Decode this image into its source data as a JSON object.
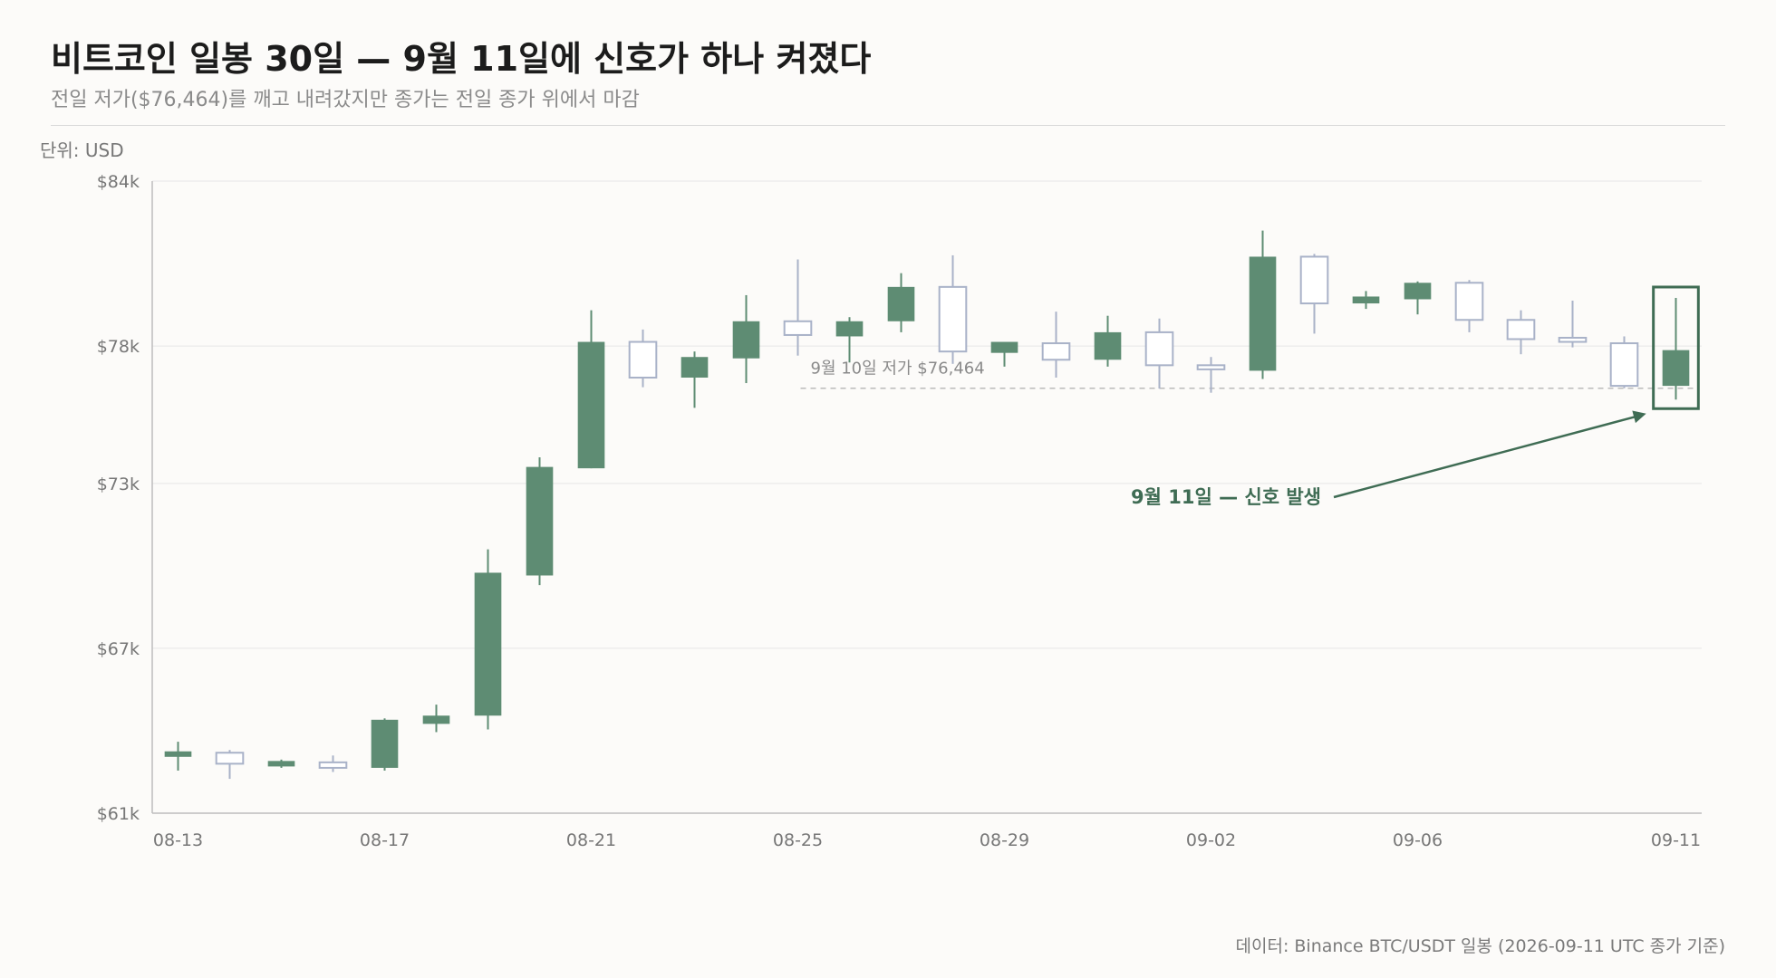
{
  "title": "비트코인 일봉 30일 — 9월 11일에 신호가 하나 켜졌다",
  "subtitle": "전일 저가($76,464)를 깨고 내려갔지만 종가는 전일 종가 위에서 마감",
  "unit_label": "단위: USD",
  "footer": "데이터: Binance BTC/USDT 일봉 (2026-09-11 UTC 종가 기준)",
  "colors": {
    "up": "#5e8c73",
    "down_stroke": "#a9b2c8",
    "highlight": "#3f6c54",
    "grid": "#e6e6e6",
    "ref_line": "#bbbbbb"
  },
  "chart_data": {
    "type": "candlestick",
    "ylim": [
      61000,
      84000
    ],
    "yticks": [
      61000,
      67000,
      73000,
      78000,
      84000
    ],
    "ytick_labels": [
      "$61k",
      "$67k",
      "$73k",
      "$78k",
      "$84k"
    ],
    "xtick_labels": [
      "08-13",
      "08-17",
      "08-21",
      "08-25",
      "08-29",
      "09-02",
      "09-06",
      "09-11"
    ],
    "xtick_indices": [
      0,
      4,
      8,
      12,
      16,
      20,
      24,
      29
    ],
    "candles": [
      {
        "date": "08-13",
        "open": 63050,
        "high": 63600,
        "low": 62550,
        "close": 63250
      },
      {
        "date": "08-14",
        "open": 63200,
        "high": 63300,
        "low": 62250,
        "close": 62800
      },
      {
        "date": "08-15",
        "open": 62700,
        "high": 62950,
        "low": 62650,
        "close": 62900
      },
      {
        "date": "08-16",
        "open": 62850,
        "high": 63100,
        "low": 62500,
        "close": 62650
      },
      {
        "date": "08-17",
        "open": 62650,
        "high": 64450,
        "low": 62550,
        "close": 64400
      },
      {
        "date": "08-18",
        "open": 64250,
        "high": 64950,
        "low": 63950,
        "close": 64550
      },
      {
        "date": "08-19",
        "open": 64550,
        "high": 70600,
        "low": 64050,
        "close": 69750
      },
      {
        "date": "08-20",
        "open": 69650,
        "high": 73950,
        "low": 69300,
        "close": 73600
      },
      {
        "date": "08-21",
        "open": 73550,
        "high": 79300,
        "low": 73550,
        "close": 78150
      },
      {
        "date": "08-22",
        "open": 78150,
        "high": 78600,
        "low": 76500,
        "close": 76850
      },
      {
        "date": "08-23",
        "open": 76850,
        "high": 77800,
        "low": 75750,
        "close": 77600
      },
      {
        "date": "08-24",
        "open": 77550,
        "high": 79850,
        "low": 76650,
        "close": 78900
      },
      {
        "date": "08-25",
        "open": 78900,
        "high": 81150,
        "low": 77650,
        "close": 78400
      },
      {
        "date": "08-26",
        "open": 78350,
        "high": 79050,
        "low": 77400,
        "close": 78900
      },
      {
        "date": "08-27",
        "open": 78900,
        "high": 80650,
        "low": 78500,
        "close": 80150
      },
      {
        "date": "08-28",
        "open": 80150,
        "high": 81300,
        "low": 77350,
        "close": 77800
      },
      {
        "date": "08-29",
        "open": 77750,
        "high": 78100,
        "low": 77250,
        "close": 78150
      },
      {
        "date": "08-30",
        "open": 78100,
        "high": 79250,
        "low": 76850,
        "close": 77500
      },
      {
        "date": "08-31",
        "open": 77500,
        "high": 79100,
        "low": 77250,
        "close": 78500
      },
      {
        "date": "09-01",
        "open": 78500,
        "high": 79000,
        "low": 76450,
        "close": 77300
      },
      {
        "date": "09-02",
        "open": 77300,
        "high": 77600,
        "low": 76300,
        "close": 77150
      },
      {
        "date": "09-03",
        "open": 77100,
        "high": 82200,
        "low": 76800,
        "close": 81250
      },
      {
        "date": "09-04",
        "open": 81250,
        "high": 81350,
        "low": 78450,
        "close": 79550
      },
      {
        "date": "09-05",
        "open": 79550,
        "high": 80000,
        "low": 79350,
        "close": 79800
      },
      {
        "date": "09-06",
        "open": 79700,
        "high": 80350,
        "low": 79150,
        "close": 80300
      },
      {
        "date": "09-07",
        "open": 80300,
        "high": 80400,
        "low": 78500,
        "close": 78950
      },
      {
        "date": "09-08",
        "open": 78950,
        "high": 79300,
        "low": 77700,
        "close": 78250
      },
      {
        "date": "09-09",
        "open": 78300,
        "high": 79650,
        "low": 77950,
        "close": 78150
      },
      {
        "date": "09-10",
        "open": 78100,
        "high": 78350,
        "low": 76464,
        "close": 76550
      },
      {
        "date": "09-11",
        "open": 76550,
        "high": 79750,
        "low": 76050,
        "close": 77850
      }
    ],
    "reference_line": {
      "value": 76464,
      "label": "9월 10일 저가 $76,464",
      "from_index": 12
    },
    "highlight_index": 29,
    "annotation": {
      "text": "9월 11일 — 신호 발생"
    }
  }
}
